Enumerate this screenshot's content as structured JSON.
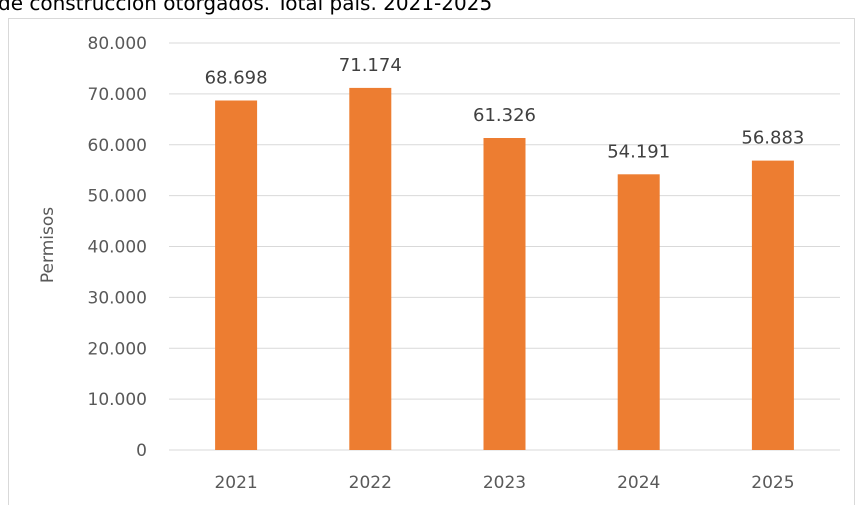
{
  "chart_data": {
    "type": "bar",
    "title": "de construcción otorgados. Total país. 2021-2025",
    "y_label": "Permisos",
    "categories": [
      "2021",
      "2022",
      "2023",
      "2024",
      "2025"
    ],
    "values": [
      68698,
      71174,
      61326,
      54191,
      56883
    ],
    "value_labels": [
      "68.698",
      "71.174",
      "61.326",
      "54.191",
      "56.883"
    ],
    "color": "#ed7d31",
    "ylim": [
      0,
      80000
    ],
    "yticks": [
      0,
      {
        "value": 10000,
        "label": "10.000"
      },
      {
        "value": 20000,
        "label": "20.000"
      },
      {
        "value": 30000,
        "label": "30.000"
      },
      {
        "value": 40000,
        "label": "40.000"
      },
      {
        "value": 50000,
        "label": "50.000"
      },
      {
        "value": 60000,
        "label": "60.000"
      },
      {
        "value": 70000,
        "label": "70.000"
      },
      {
        "value": 80000,
        "label": "80.000"
      }
    ],
    "grid": true
  }
}
